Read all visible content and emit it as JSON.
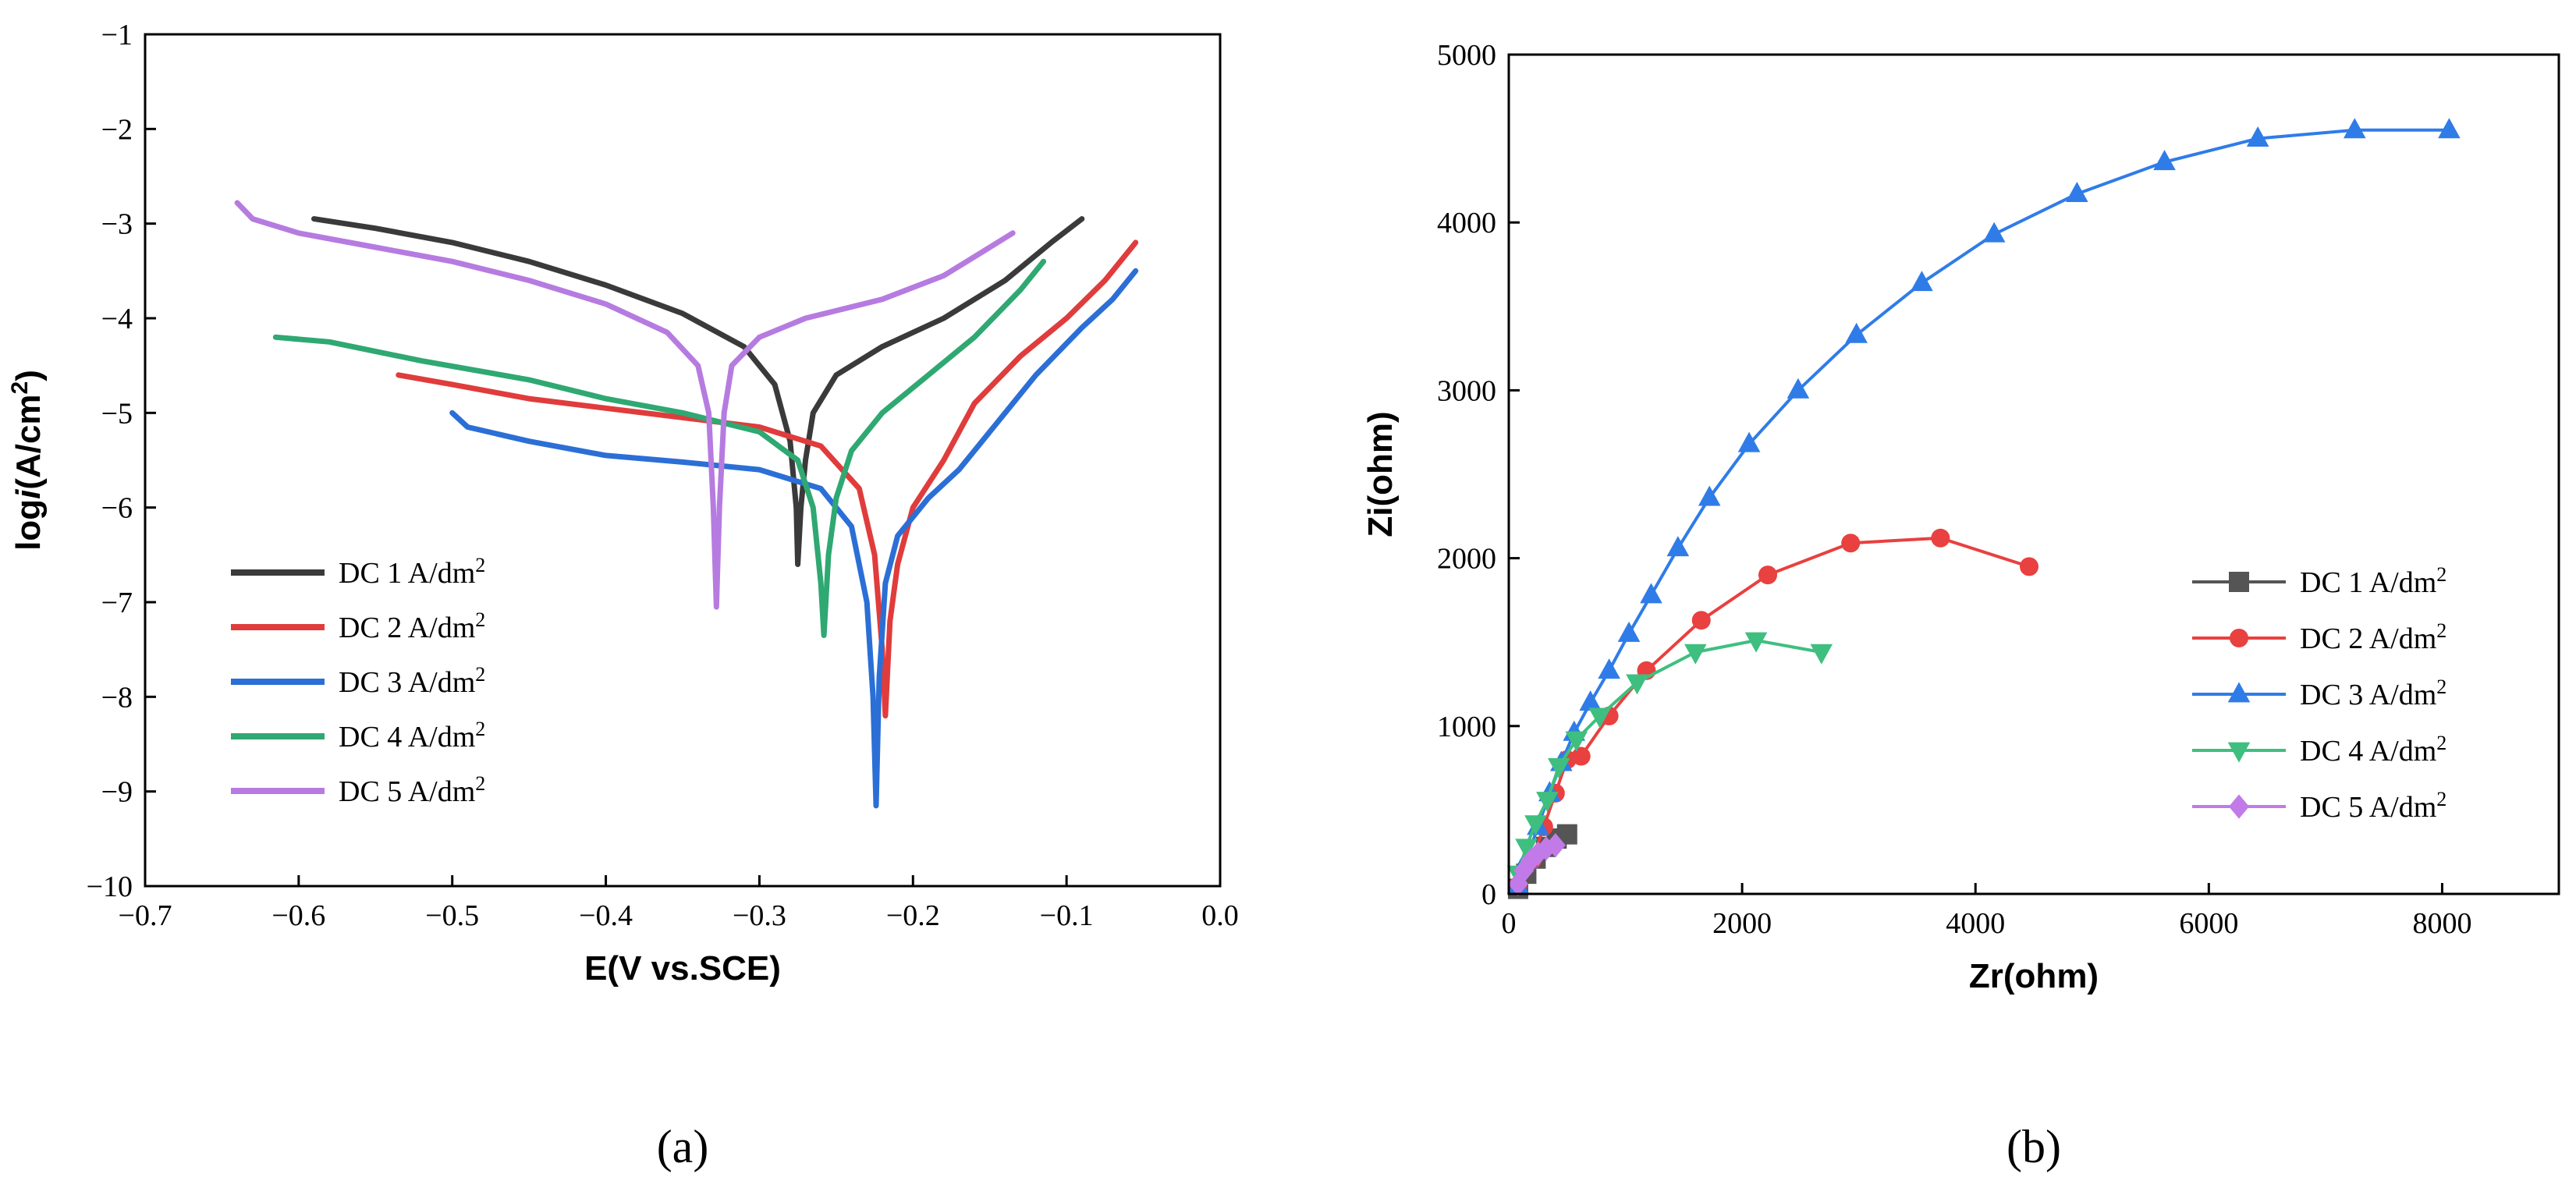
{
  "chart_data": [
    {
      "id": "a",
      "type": "line",
      "panel_label": "(a)",
      "xlabel": "E(V vs.SCE)",
      "ylabel": "log/i (A/cm2)",
      "ylabel_parts": {
        "prefix": "log",
        "italic": "i",
        "unit_open": "(A/cm",
        "sup": "2",
        "unit_close": ")"
      },
      "xlim": [
        -0.7,
        0.0
      ],
      "ylim": [
        -10,
        -1
      ],
      "xticks": [
        -0.7,
        -0.6,
        -0.5,
        -0.4,
        -0.3,
        -0.2,
        -0.1,
        0.0
      ],
      "xtick_labels": [
        "−0.7",
        "−0.6",
        "−0.5",
        "−0.4",
        "−0.3",
        "−0.2",
        "−0.1",
        "0.0"
      ],
      "yticks": [
        -1,
        -2,
        -3,
        -4,
        -5,
        -6,
        -7,
        -8,
        -9,
        -10
      ],
      "ytick_labels": [
        "−1",
        "−2",
        "−3",
        "−4",
        "−5",
        "−6",
        "−7",
        "−8",
        "−9",
        "−10"
      ],
      "grid": false,
      "legend_position": "lower-left",
      "series": [
        {
          "name": "DC 1 A/dm",
          "sup": "2",
          "color": "#3a3a3a",
          "points": [
            [
              -0.59,
              -2.95
            ],
            [
              -0.55,
              -3.05
            ],
            [
              -0.5,
              -3.2
            ],
            [
              -0.45,
              -3.4
            ],
            [
              -0.4,
              -3.65
            ],
            [
              -0.35,
              -3.95
            ],
            [
              -0.31,
              -4.3
            ],
            [
              -0.29,
              -4.7
            ],
            [
              -0.28,
              -5.3
            ],
            [
              -0.276,
              -6.0
            ],
            [
              -0.275,
              -6.6
            ],
            [
              -0.273,
              -6.0
            ],
            [
              -0.27,
              -5.5
            ],
            [
              -0.265,
              -5.0
            ],
            [
              -0.25,
              -4.6
            ],
            [
              -0.22,
              -4.3
            ],
            [
              -0.18,
              -4.0
            ],
            [
              -0.14,
              -3.6
            ],
            [
              -0.11,
              -3.2
            ],
            [
              -0.09,
              -2.95
            ]
          ]
        },
        {
          "name": "DC 2 A/dm",
          "sup": "2",
          "color": "#e03c3c",
          "points": [
            [
              -0.535,
              -4.6
            ],
            [
              -0.5,
              -4.7
            ],
            [
              -0.45,
              -4.85
            ],
            [
              -0.4,
              -4.95
            ],
            [
              -0.35,
              -5.05
            ],
            [
              -0.3,
              -5.15
            ],
            [
              -0.26,
              -5.35
            ],
            [
              -0.235,
              -5.8
            ],
            [
              -0.225,
              -6.5
            ],
            [
              -0.22,
              -7.5
            ],
            [
              -0.218,
              -8.2
            ],
            [
              -0.215,
              -7.2
            ],
            [
              -0.21,
              -6.6
            ],
            [
              -0.2,
              -6.0
            ],
            [
              -0.18,
              -5.5
            ],
            [
              -0.16,
              -4.9
            ],
            [
              -0.13,
              -4.4
            ],
            [
              -0.1,
              -4.0
            ],
            [
              -0.075,
              -3.6
            ],
            [
              -0.06,
              -3.3
            ],
            [
              -0.055,
              -3.2
            ]
          ]
        },
        {
          "name": "DC 3 A/dm",
          "sup": "2",
          "color": "#2b6fd6",
          "points": [
            [
              -0.5,
              -5.0
            ],
            [
              -0.49,
              -5.15
            ],
            [
              -0.45,
              -5.3
            ],
            [
              -0.4,
              -5.45
            ],
            [
              -0.35,
              -5.52
            ],
            [
              -0.3,
              -5.6
            ],
            [
              -0.26,
              -5.8
            ],
            [
              -0.24,
              -6.2
            ],
            [
              -0.23,
              -7.0
            ],
            [
              -0.226,
              -8.0
            ],
            [
              -0.224,
              -9.15
            ],
            [
              -0.222,
              -7.8
            ],
            [
              -0.218,
              -6.8
            ],
            [
              -0.21,
              -6.3
            ],
            [
              -0.19,
              -5.9
            ],
            [
              -0.17,
              -5.6
            ],
            [
              -0.15,
              -5.2
            ],
            [
              -0.12,
              -4.6
            ],
            [
              -0.09,
              -4.1
            ],
            [
              -0.07,
              -3.8
            ],
            [
              -0.055,
              -3.5
            ]
          ]
        },
        {
          "name": "DC 4 A/dm",
          "sup": "2",
          "color": "#2fa872",
          "points": [
            [
              -0.615,
              -4.2
            ],
            [
              -0.58,
              -4.25
            ],
            [
              -0.52,
              -4.45
            ],
            [
              -0.45,
              -4.65
            ],
            [
              -0.4,
              -4.85
            ],
            [
              -0.35,
              -5.0
            ],
            [
              -0.3,
              -5.2
            ],
            [
              -0.275,
              -5.5
            ],
            [
              -0.265,
              -6.0
            ],
            [
              -0.26,
              -6.8
            ],
            [
              -0.258,
              -7.35
            ],
            [
              -0.255,
              -6.5
            ],
            [
              -0.25,
              -5.9
            ],
            [
              -0.24,
              -5.4
            ],
            [
              -0.22,
              -5.0
            ],
            [
              -0.19,
              -4.6
            ],
            [
              -0.16,
              -4.2
            ],
            [
              -0.13,
              -3.7
            ],
            [
              -0.115,
              -3.4
            ]
          ]
        },
        {
          "name": "DC 5 A/dm",
          "sup": "2",
          "color": "#b67be0",
          "points": [
            [
              -0.64,
              -2.78
            ],
            [
              -0.63,
              -2.95
            ],
            [
              -0.6,
              -3.1
            ],
            [
              -0.55,
              -3.25
            ],
            [
              -0.5,
              -3.4
            ],
            [
              -0.45,
              -3.6
            ],
            [
              -0.4,
              -3.85
            ],
            [
              -0.36,
              -4.15
            ],
            [
              -0.34,
              -4.5
            ],
            [
              -0.333,
              -5.0
            ],
            [
              -0.33,
              -6.0
            ],
            [
              -0.328,
              -7.05
            ],
            [
              -0.326,
              -6.0
            ],
            [
              -0.323,
              -5.0
            ],
            [
              -0.318,
              -4.5
            ],
            [
              -0.3,
              -4.2
            ],
            [
              -0.27,
              -4.0
            ],
            [
              -0.22,
              -3.8
            ],
            [
              -0.18,
              -3.55
            ],
            [
              -0.155,
              -3.3
            ],
            [
              -0.135,
              -3.1
            ]
          ]
        }
      ]
    },
    {
      "id": "b",
      "type": "line",
      "panel_label": "(b)",
      "xlabel": "Zr(ohm)",
      "ylabel": "Zi(ohm)",
      "xlim": [
        0,
        9000
      ],
      "ylim": [
        0,
        5000
      ],
      "xticks": [
        0,
        2000,
        4000,
        6000,
        8000
      ],
      "xtick_labels": [
        "0",
        "2000",
        "4000",
        "6000",
        "8000"
      ],
      "yticks": [
        0,
        1000,
        2000,
        3000,
        4000,
        5000
      ],
      "ytick_labels": [
        "0",
        "1000",
        "2000",
        "3000",
        "4000",
        "5000"
      ],
      "grid": false,
      "legend_position": "lower-right",
      "series": [
        {
          "name": "DC 1 A/dm",
          "sup": "2",
          "color": "#555555",
          "marker": "square",
          "points": [
            [
              80,
              30
            ],
            [
              150,
              120
            ],
            [
              230,
              210
            ],
            [
              320,
              280
            ],
            [
              410,
              330
            ],
            [
              500,
              355
            ]
          ]
        },
        {
          "name": "DC 2 A/dm",
          "sup": "2",
          "color": "#e94040",
          "marker": "circle",
          "points": [
            [
              80,
              50
            ],
            [
              200,
              200
            ],
            [
              300,
              400
            ],
            [
              400,
              600
            ],
            [
              500,
              800
            ],
            [
              620,
              820
            ],
            [
              860,
              1060
            ],
            [
              1180,
              1330
            ],
            [
              1650,
              1630
            ],
            [
              2220,
              1900
            ],
            [
              2930,
              2090
            ],
            [
              3700,
              2120
            ],
            [
              4460,
              1950
            ]
          ]
        },
        {
          "name": "DC 3 A/dm",
          "sup": "2",
          "color": "#2f7ce8",
          "marker": "triangle-up",
          "points": [
            [
              80,
              50
            ],
            [
              150,
              200
            ],
            [
              250,
              400
            ],
            [
              350,
              600
            ],
            [
              450,
              780
            ],
            [
              560,
              960
            ],
            [
              700,
              1140
            ],
            [
              860,
              1330
            ],
            [
              1030,
              1550
            ],
            [
              1220,
              1780
            ],
            [
              1450,
              2060
            ],
            [
              1720,
              2360
            ],
            [
              2060,
              2680
            ],
            [
              2480,
              3000
            ],
            [
              2980,
              3330
            ],
            [
              3540,
              3640
            ],
            [
              4160,
              3930
            ],
            [
              4870,
              4170
            ],
            [
              5620,
              4360
            ],
            [
              6420,
              4500
            ],
            [
              7250,
              4550
            ],
            [
              8060,
              4550
            ]
          ]
        },
        {
          "name": "DC 4 A/dm",
          "sup": "2",
          "color": "#3fbf7f",
          "marker": "triangle-down",
          "points": [
            [
              80,
              120
            ],
            [
              150,
              280
            ],
            [
              230,
              420
            ],
            [
              330,
              560
            ],
            [
              430,
              760
            ],
            [
              580,
              920
            ],
            [
              780,
              1060
            ],
            [
              1100,
              1260
            ],
            [
              1600,
              1440
            ],
            [
              2120,
              1510
            ],
            [
              2680,
              1440
            ]
          ]
        },
        {
          "name": "DC 5 A/dm",
          "sup": "2",
          "color": "#c27ae8",
          "marker": "diamond",
          "points": [
            [
              80,
              60
            ],
            [
              130,
              140
            ],
            [
              190,
              200
            ],
            [
              250,
              240
            ],
            [
              320,
              270
            ],
            [
              400,
              290
            ]
          ]
        }
      ]
    }
  ]
}
